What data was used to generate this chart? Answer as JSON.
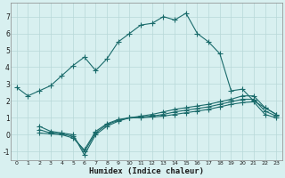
{
  "title": "",
  "xlabel": "Humidex (Indice chaleur)",
  "bg_color": "#d8f0f0",
  "grid_color": "#b8d8d8",
  "line_color": "#1a6b6b",
  "xlim": [
    -0.5,
    23.5
  ],
  "ylim": [
    -1.5,
    7.8
  ],
  "xticks": [
    0,
    1,
    2,
    3,
    4,
    5,
    6,
    7,
    8,
    9,
    10,
    11,
    12,
    13,
    14,
    15,
    16,
    17,
    18,
    19,
    20,
    21,
    22,
    23
  ],
  "yticks": [
    -1,
    0,
    1,
    2,
    3,
    4,
    5,
    6,
    7
  ],
  "series1_x": [
    0,
    1,
    2,
    3,
    4,
    5,
    6,
    7,
    8,
    9,
    10,
    11,
    12,
    13,
    14,
    15,
    16,
    17,
    18,
    19,
    20,
    21,
    22,
    23
  ],
  "series1_y": [
    2.8,
    2.3,
    2.6,
    2.9,
    3.5,
    4.1,
    4.6,
    3.8,
    4.5,
    5.5,
    6.0,
    6.5,
    6.6,
    7.0,
    6.8,
    7.2,
    6.0,
    5.5,
    4.8,
    2.6,
    2.7,
    2.0,
    1.6,
    1.2
  ],
  "series2_x": [
    2,
    3,
    4,
    5,
    6,
    7,
    8,
    9,
    10,
    11,
    12,
    13,
    14,
    15,
    16,
    17,
    18,
    19,
    20,
    21,
    22,
    23
  ],
  "series2_y": [
    0.5,
    0.2,
    0.1,
    0.0,
    -1.2,
    0.0,
    0.5,
    0.8,
    1.0,
    1.1,
    1.2,
    1.35,
    1.5,
    1.6,
    1.7,
    1.8,
    1.95,
    2.1,
    2.3,
    2.3,
    1.6,
    1.2
  ],
  "series3_x": [
    2,
    3,
    4,
    5,
    6,
    7,
    8,
    9,
    10,
    11,
    12,
    13,
    14,
    15,
    16,
    17,
    18,
    19,
    20,
    21,
    22,
    23
  ],
  "series3_y": [
    0.3,
    0.1,
    0.05,
    -0.1,
    -1.0,
    0.1,
    0.6,
    0.85,
    1.0,
    1.05,
    1.1,
    1.2,
    1.35,
    1.45,
    1.55,
    1.65,
    1.8,
    1.95,
    2.1,
    2.1,
    1.4,
    1.1
  ],
  "series4_x": [
    2,
    3,
    4,
    5,
    6,
    7,
    8,
    9,
    10,
    11,
    12,
    13,
    14,
    15,
    16,
    17,
    18,
    19,
    20,
    21,
    22,
    23
  ],
  "series4_y": [
    0.1,
    0.05,
    0.0,
    -0.2,
    -0.9,
    0.2,
    0.65,
    0.9,
    1.0,
    1.0,
    1.05,
    1.1,
    1.2,
    1.3,
    1.4,
    1.5,
    1.65,
    1.8,
    1.9,
    1.95,
    1.2,
    1.0
  ]
}
